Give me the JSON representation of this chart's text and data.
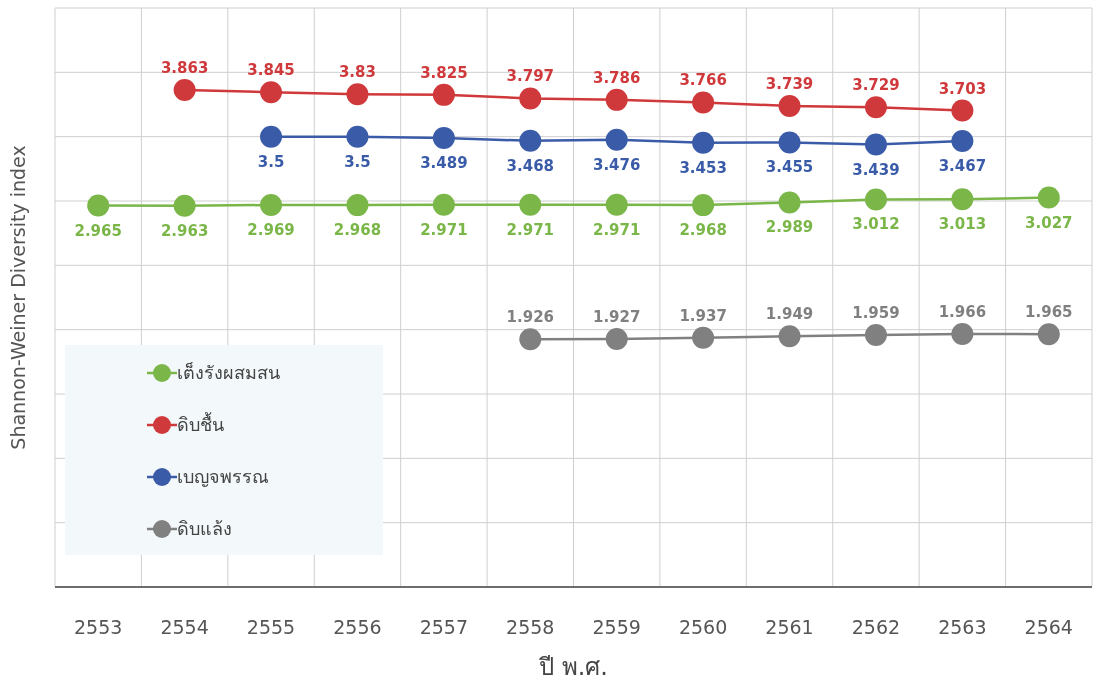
{
  "chart_data": {
    "type": "line",
    "xlabel": "ปี พ.ศ.",
    "ylabel": "Shannon-Weiner Diversity index",
    "categories": [
      "2553",
      "2554",
      "2555",
      "2556",
      "2557",
      "2558",
      "2559",
      "2560",
      "2561",
      "2562",
      "2563",
      "2564"
    ],
    "series": [
      {
        "name": "เต็งรังผสมสน",
        "color": "#7ab648",
        "values": [
          2.965,
          2.963,
          2.969,
          2.968,
          2.971,
          2.971,
          2.971,
          2.968,
          2.989,
          3.012,
          3.013,
          3.027
        ]
      },
      {
        "name": "ดิบชื้น",
        "color": "#d0393b",
        "values": [
          null,
          3.863,
          3.845,
          3.83,
          3.825,
          3.797,
          3.786,
          3.766,
          3.739,
          3.729,
          3.703,
          null
        ]
      },
      {
        "name": "เบญจพรรณ",
        "color": "#3a5ca8",
        "values": [
          null,
          null,
          3.5,
          3.5,
          3.489,
          3.468,
          3.476,
          3.453,
          3.455,
          3.439,
          3.467,
          null
        ]
      },
      {
        "name": "ดิบแล้ง",
        "color": "#808080",
        "values": [
          null,
          null,
          null,
          null,
          null,
          1.926,
          1.927,
          1.937,
          1.949,
          1.959,
          1.966,
          1.965
        ]
      }
    ],
    "ylim": [
      0,
      4.5
    ],
    "tick_labels": "x",
    "grid": true,
    "legend": "bottom left",
    "marker": "circle",
    "line_style": "solid",
    "data_labels": true
  }
}
